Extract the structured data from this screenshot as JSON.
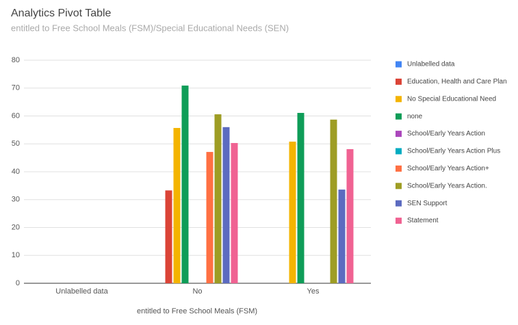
{
  "chart_data": {
    "type": "bar",
    "title": "Analytics Pivot Table",
    "subtitle": "entitled to Free School Meals (FSM)/Special Educational Needs (SEN)",
    "x_label": "entitled to Free School Meals (FSM)",
    "categories": [
      "Unlabelled data",
      "No",
      "Yes"
    ],
    "series": [
      {
        "name": "Unlabelled data",
        "color": "#4285f4",
        "values": [
          null,
          null,
          null
        ]
      },
      {
        "name": "Education, Health and Care Plan",
        "color": "#db4437",
        "values": [
          null,
          33.3,
          null
        ]
      },
      {
        "name": "No Special Educational Need",
        "color": "#f4b400",
        "values": [
          null,
          55.7,
          50.8
        ]
      },
      {
        "name": "none",
        "color": "#0f9d58",
        "values": [
          null,
          70.9,
          61.1
        ]
      },
      {
        "name": "School/Early Years Action",
        "color": "#ab47bc",
        "values": [
          null,
          null,
          null
        ]
      },
      {
        "name": "School/Early Years Action Plus",
        "color": "#00acc1",
        "values": [
          null,
          null,
          null
        ]
      },
      {
        "name": "School/Early Years Action+",
        "color": "#ff7043",
        "values": [
          null,
          47.1,
          null
        ]
      },
      {
        "name": "School/Early Years Action.",
        "color": "#9e9d24",
        "values": [
          null,
          60.6,
          58.7
        ]
      },
      {
        "name": "SEN Support",
        "color": "#5c6bc0",
        "values": [
          null,
          56,
          33.6
        ]
      },
      {
        "name": "Statement",
        "color": "#f06292",
        "values": [
          null,
          50.3,
          48.1
        ]
      }
    ],
    "ylim": [
      0,
      80
    ],
    "yticks": [
      0,
      10,
      20,
      30,
      40,
      50,
      60,
      70,
      80
    ],
    "grid": true,
    "legend": "right"
  }
}
